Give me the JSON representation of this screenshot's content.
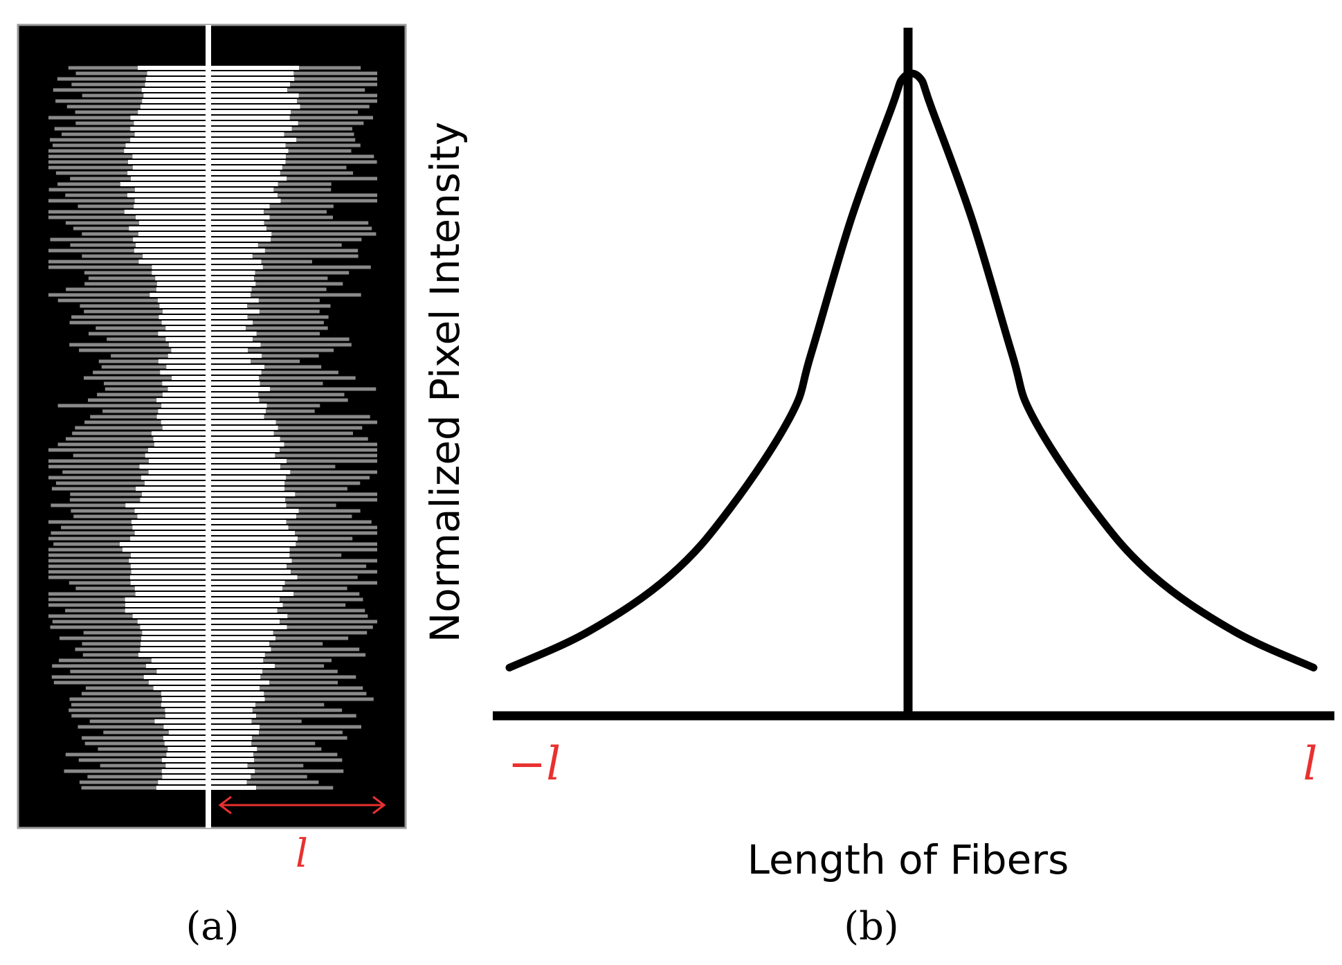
{
  "panel_a": {
    "caption": "(a)",
    "length_label": "l"
  },
  "panel_b": {
    "caption": "(b)",
    "y_axis_label": "Normalized Pixel Intensity",
    "x_axis_label": "Length of Fibers",
    "x_tick_left": "−l",
    "x_tick_right": "l"
  },
  "colors": {
    "red": "#e8312f",
    "black": "#000000",
    "gray": "#8a8a8a",
    "white": "#ffffff"
  },
  "chart_data": {
    "type": "line",
    "x": [
      -1.0,
      -0.8,
      -0.6,
      -0.45,
      -0.3,
      -0.25,
      -0.15,
      -0.05,
      -0.02,
      0.02,
      0.05,
      0.15,
      0.25,
      0.3,
      0.45,
      0.6,
      0.8,
      1.0
    ],
    "y": [
      0.04,
      0.1,
      0.19,
      0.3,
      0.45,
      0.55,
      0.77,
      0.95,
      1.0,
      1.0,
      0.95,
      0.77,
      0.55,
      0.45,
      0.3,
      0.19,
      0.1,
      0.04
    ],
    "xlim": [
      -1,
      1
    ],
    "ylim": [
      0,
      1.05
    ],
    "xlabel": "Length of Fibers",
    "ylabel": "Normalized Pixel Intensity",
    "x_tick_labels": [
      "−l",
      "l"
    ],
    "grid": false
  }
}
